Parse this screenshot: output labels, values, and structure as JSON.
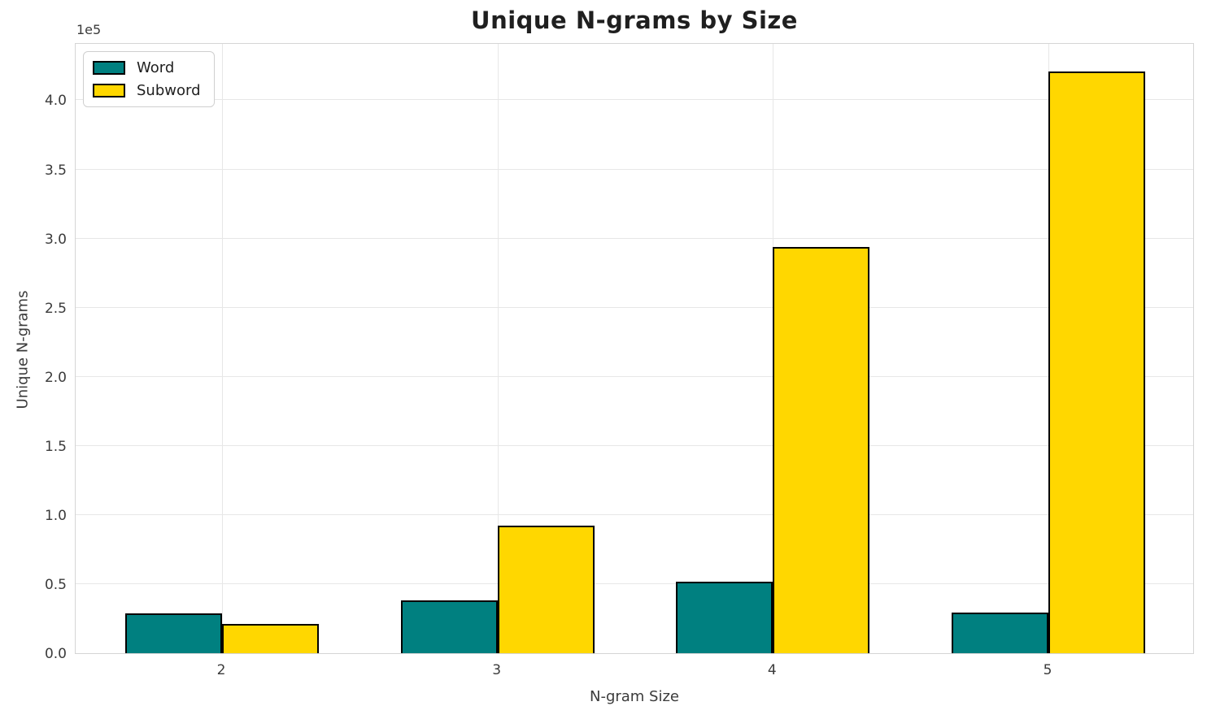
{
  "chart_data": {
    "type": "bar",
    "title": "Unique N-grams by Size",
    "xlabel": "N-gram Size",
    "ylabel": "Unique N-grams",
    "offset_text": "1e5",
    "categories": [
      "2",
      "3",
      "4",
      "5"
    ],
    "series": [
      {
        "name": "Word",
        "color": "#008080",
        "values": [
          29000,
          38000,
          52000,
          29500
        ]
      },
      {
        "name": "Subword",
        "color": "#FFD700",
        "values": [
          21000,
          92500,
          294000,
          421000
        ]
      }
    ],
    "bar_edge_color": "#000000",
    "ylim": [
      0,
      442000
    ],
    "yticks": [
      0,
      50000,
      100000,
      150000,
      200000,
      250000,
      300000,
      350000,
      400000
    ],
    "ytick_labels": [
      "0.0",
      "0.5",
      "1.0",
      "1.5",
      "2.0",
      "2.5",
      "3.0",
      "3.5",
      "4.0"
    ],
    "grid": true,
    "legend_position": "upper left"
  },
  "colors": {
    "background": "#ffffff",
    "grid": "#e7e7e7",
    "spine": "#d5d5d5",
    "text": "#3b3b3b",
    "title": "#1f1f1f",
    "word_bar": "#008080",
    "subword_bar": "#FFD700",
    "bar_edge": "#000000"
  }
}
